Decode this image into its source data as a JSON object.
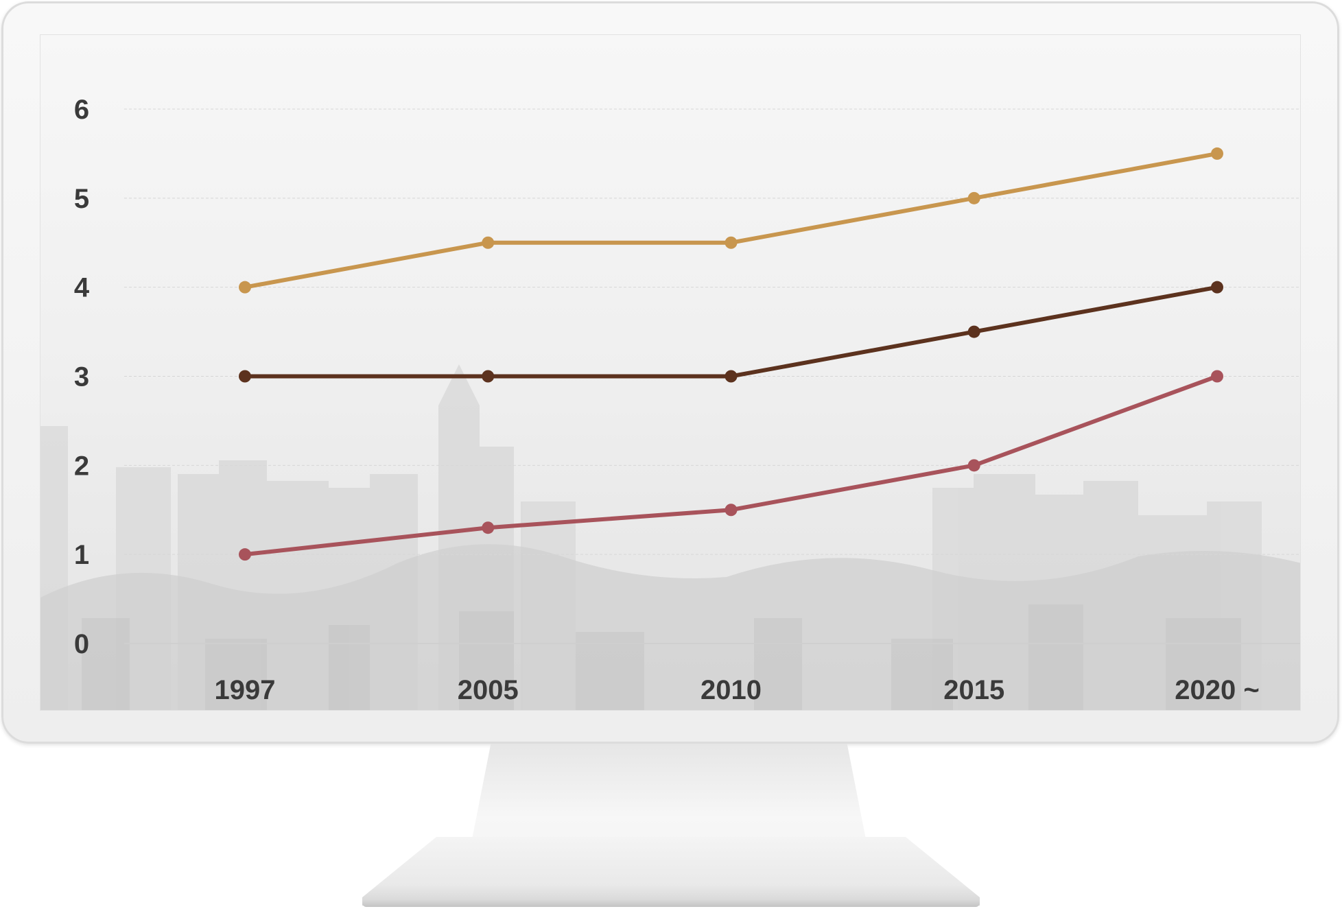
{
  "chart_data": {
    "type": "line",
    "title": "",
    "xlabel": "",
    "ylabel": "",
    "categories": [
      "1997",
      "2005",
      "2010",
      "2015",
      "2020 ~"
    ],
    "y_ticks": [
      "0",
      "1",
      "2",
      "3",
      "4",
      "5",
      "6"
    ],
    "ylim": [
      0,
      6
    ],
    "grid": true,
    "legend": "none",
    "series": [
      {
        "color": "#C8964E",
        "values": [
          4,
          4.5,
          4.5,
          5,
          5.5
        ]
      },
      {
        "color": "#5C321E",
        "values": [
          3,
          3,
          3,
          3.5,
          4
        ]
      },
      {
        "color": "#A8535B",
        "values": [
          1,
          1.3,
          1.5,
          2,
          3
        ]
      }
    ]
  },
  "colors": {
    "gridline": "#d6d6d6",
    "axis": "#cfcfcf",
    "tick_label": "#3a3a3a",
    "background_skyline": "#d3d3d3"
  }
}
